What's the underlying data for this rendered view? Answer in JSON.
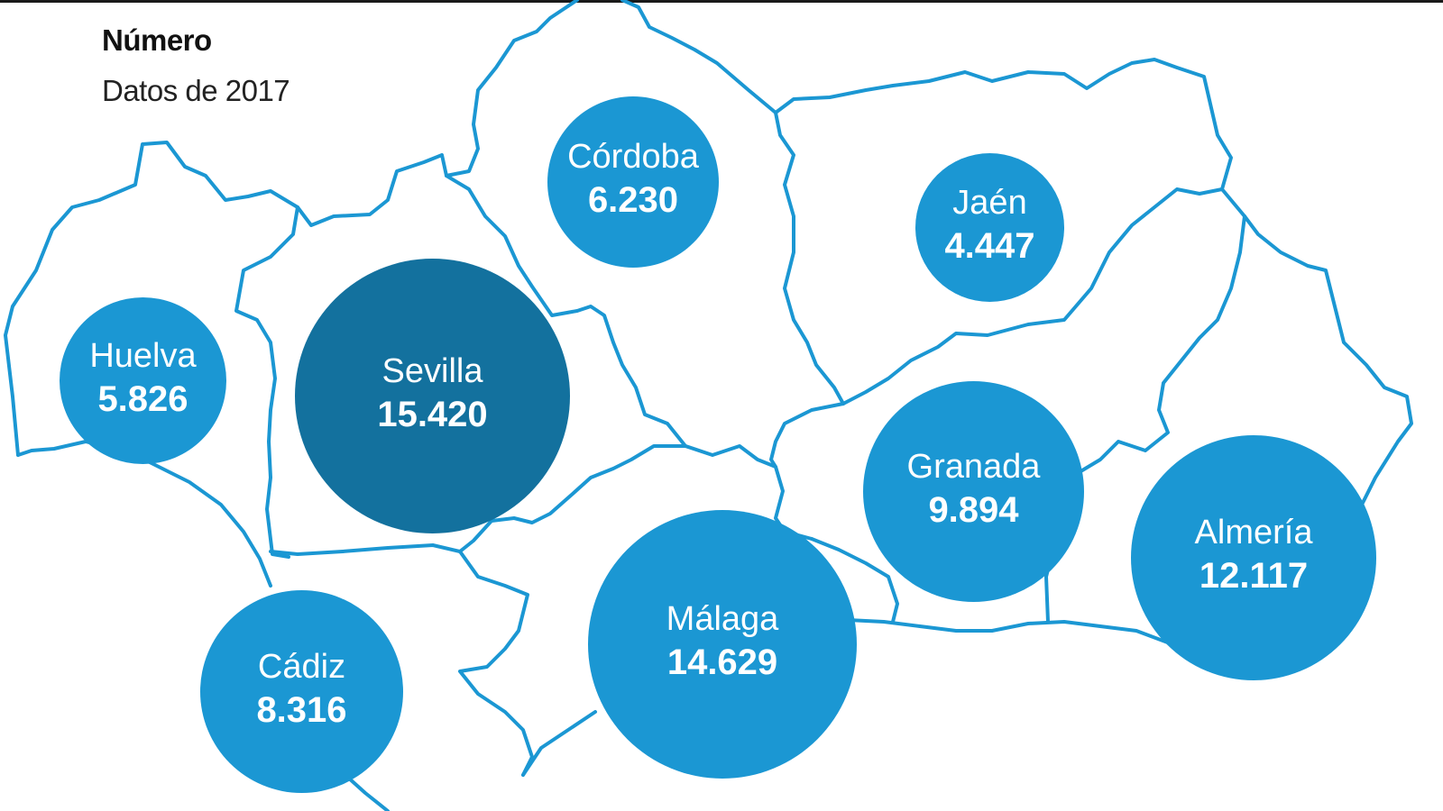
{
  "title": "Número",
  "subtitle": "Datos de 2017",
  "colors": {
    "border": "#1b97d3",
    "bubble": "#1b97d3",
    "bubble_highlight": "#13719e"
  },
  "provinces": [
    {
      "name": "Córdoba",
      "value": "6.230",
      "number": 6230
    },
    {
      "name": "Jaén",
      "value": "4.447",
      "number": 4447
    },
    {
      "name": "Huelva",
      "value": "5.826",
      "number": 5826
    },
    {
      "name": "Sevilla",
      "value": "15.420",
      "number": 15420
    },
    {
      "name": "Granada",
      "value": "9.894",
      "number": 9894
    },
    {
      "name": "Almería",
      "value": "12.117",
      "number": 12117
    },
    {
      "name": "Cádiz",
      "value": "8.316",
      "number": 8316
    },
    {
      "name": "Málaga",
      "value": "14.629",
      "number": 14629
    }
  ]
}
